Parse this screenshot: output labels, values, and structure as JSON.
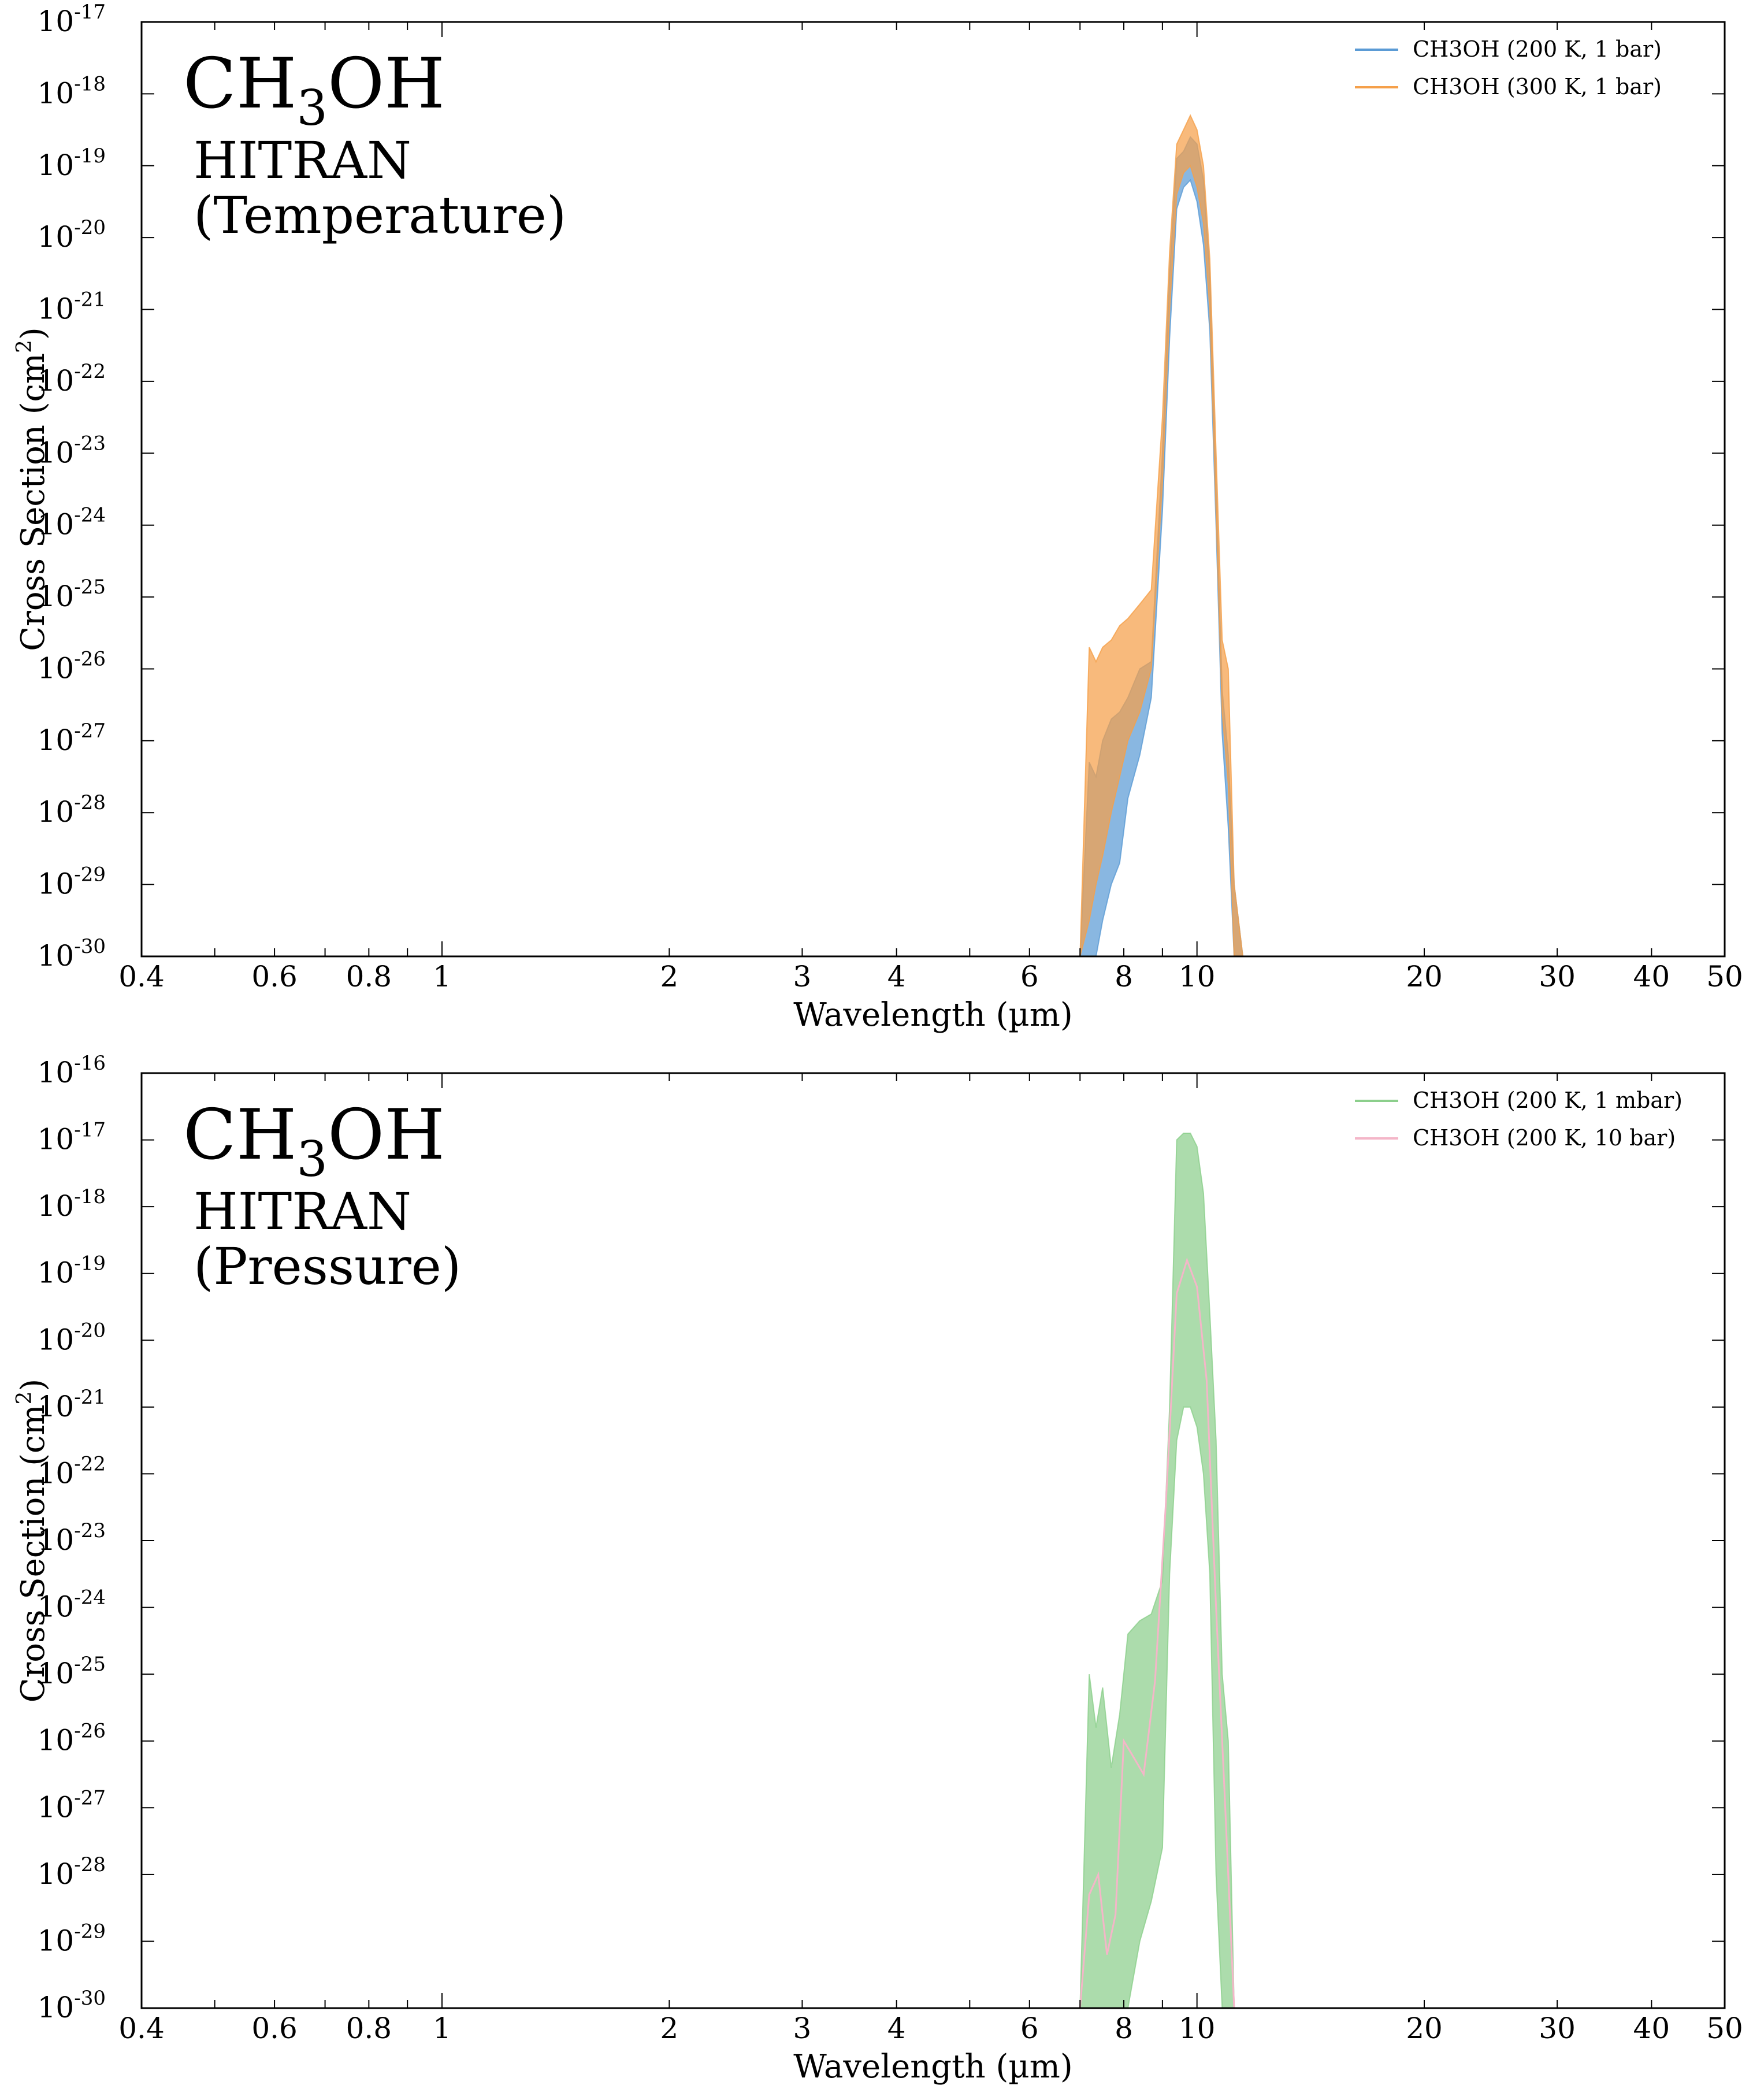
{
  "chart_data": [
    {
      "type": "area",
      "ylabel": "Cross Section (cm²)",
      "ylabel_main": "Cross Section (cm",
      "ylabel_sup": "2",
      "ylabel_close": ")",
      "xlabel": "Wavelength (µm)",
      "xscale": "log",
      "yscale": "log",
      "xlim": [
        0.4,
        50
      ],
      "ylim_exp": [
        -30,
        -17
      ],
      "xticks": [
        0.4,
        0.6,
        0.8,
        1,
        2,
        3,
        4,
        6,
        8,
        10,
        20,
        30,
        40,
        50
      ],
      "xtick_labels": [
        "0.4",
        "0.6",
        "0.8",
        "1",
        "2",
        "3",
        "4",
        "6",
        "8",
        "10",
        "20",
        "30",
        "40",
        "50"
      ],
      "ytick_exps": [
        "-30",
        "-29",
        "-28",
        "-27",
        "-26",
        "-25",
        "-24",
        "-23",
        "-22",
        "-21",
        "-20",
        "-19",
        "-18",
        "-17"
      ],
      "annotation": {
        "molecule_main": "CH",
        "molecule_sub": "3",
        "molecule_tail": "OH",
        "line1": "HITRAN",
        "line2": "(Temperature)"
      },
      "legend_position": "top-right",
      "series": [
        {
          "name": "CH3OH (200 K, 1 bar)",
          "color": "#5b9bd5",
          "x": [
            7.0,
            7.2,
            7.35,
            7.5,
            7.7,
            7.9,
            8.1,
            8.4,
            8.7,
            9.0,
            9.2,
            9.4,
            9.6,
            9.8,
            10.0,
            10.2,
            10.4,
            10.6,
            10.8,
            11.0,
            11.2,
            11.5
          ],
          "upper": [
            -30,
            -27.3,
            -27.5,
            -27.0,
            -26.7,
            -26.6,
            -26.4,
            -26.0,
            -25.9,
            -23.0,
            -20.5,
            -18.9,
            -18.8,
            -18.6,
            -18.7,
            -19.2,
            -20.5,
            -23.5,
            -26.3,
            -27.2,
            -29.0,
            -30
          ],
          "lower": [
            -30,
            -30,
            -30,
            -29.5,
            -29.0,
            -28.7,
            -27.8,
            -27.2,
            -26.4,
            -23.8,
            -21.4,
            -19.6,
            -19.3,
            -19.2,
            -19.5,
            -20.1,
            -21.3,
            -24.0,
            -26.9,
            -28.2,
            -30,
            -30
          ]
        },
        {
          "name": "CH3OH (300 K, 1 bar)",
          "color": "#f5a04a",
          "x": [
            7.0,
            7.2,
            7.35,
            7.5,
            7.7,
            7.9,
            8.1,
            8.4,
            8.7,
            9.0,
            9.2,
            9.4,
            9.6,
            9.8,
            10.0,
            10.2,
            10.4,
            10.6,
            10.8,
            11.0,
            11.2,
            11.5
          ],
          "upper": [
            -30,
            -25.7,
            -25.9,
            -25.7,
            -25.6,
            -25.4,
            -25.3,
            -25.1,
            -24.9,
            -22.5,
            -20.2,
            -18.7,
            -18.5,
            -18.3,
            -18.5,
            -19.0,
            -20.3,
            -23.0,
            -25.6,
            -26.0,
            -29.0,
            -30
          ],
          "lower": [
            -30,
            -29.5,
            -29.0,
            -28.6,
            -28.0,
            -27.5,
            -27.0,
            -26.6,
            -26.0,
            -23.4,
            -21.0,
            -19.4,
            -19.1,
            -19.0,
            -19.3,
            -19.8,
            -21.0,
            -23.8,
            -26.6,
            -27.6,
            -30,
            -30
          ]
        }
      ]
    },
    {
      "type": "area",
      "ylabel": "Cross Section (cm²)",
      "ylabel_main": "Cross Section (cm",
      "ylabel_sup": "2",
      "ylabel_close": ")",
      "xlabel": "Wavelength (µm)",
      "xscale": "log",
      "yscale": "log",
      "xlim": [
        0.4,
        50
      ],
      "ylim_exp": [
        -30,
        -16
      ],
      "xticks": [
        0.4,
        0.6,
        0.8,
        1,
        2,
        3,
        4,
        6,
        8,
        10,
        20,
        30,
        40,
        50
      ],
      "xtick_labels": [
        "0.4",
        "0.6",
        "0.8",
        "1",
        "2",
        "3",
        "4",
        "6",
        "8",
        "10",
        "20",
        "30",
        "40",
        "50"
      ],
      "ytick_exps": [
        "-30",
        "-29",
        "-28",
        "-27",
        "-26",
        "-25",
        "-24",
        "-23",
        "-22",
        "-21",
        "-20",
        "-19",
        "-18",
        "-17",
        "-16"
      ],
      "annotation": {
        "molecule_main": "CH",
        "molecule_sub": "3",
        "molecule_tail": "OH",
        "line1": "HITRAN",
        "line2": "(Pressure)"
      },
      "legend_position": "top-right",
      "series": [
        {
          "name": "CH3OH (200 K, 1 mbar)",
          "color": "#8ccf8c",
          "x": [
            7.0,
            7.2,
            7.35,
            7.5,
            7.7,
            7.9,
            8.1,
            8.4,
            8.7,
            9.0,
            9.2,
            9.4,
            9.6,
            9.8,
            10.0,
            10.2,
            10.4,
            10.6,
            10.8,
            11.0,
            11.2
          ],
          "upper": [
            -30,
            -25.0,
            -25.8,
            -25.2,
            -26.4,
            -25.6,
            -24.4,
            -24.2,
            -24.1,
            -23.6,
            -21.0,
            -17.0,
            -16.9,
            -16.9,
            -17.1,
            -17.8,
            -19.6,
            -21.5,
            -25.0,
            -26.0,
            -30
          ],
          "lower": [
            -30,
            -30,
            -30,
            -30,
            -30,
            -30,
            -30,
            -29.0,
            -28.4,
            -27.6,
            -23.5,
            -21.5,
            -21.0,
            -21.0,
            -21.3,
            -22.0,
            -23.5,
            -28.0,
            -30,
            -30,
            -30
          ]
        },
        {
          "name": "CH3OH (200 K, 10 bar)",
          "color": "#f4b6c8",
          "x": [
            7.0,
            7.2,
            7.4,
            7.6,
            7.8,
            8.0,
            8.2,
            8.5,
            8.8,
            9.1,
            9.4,
            9.7,
            10.0,
            10.3,
            10.6,
            10.9,
            11.2
          ],
          "y": [
            -30,
            -28.3,
            -28.0,
            -29.2,
            -28.6,
            -26.0,
            -26.2,
            -26.5,
            -25.1,
            -22.4,
            -19.3,
            -18.8,
            -19.2,
            -20.6,
            -24.0,
            -27.0,
            -30
          ]
        }
      ]
    }
  ]
}
